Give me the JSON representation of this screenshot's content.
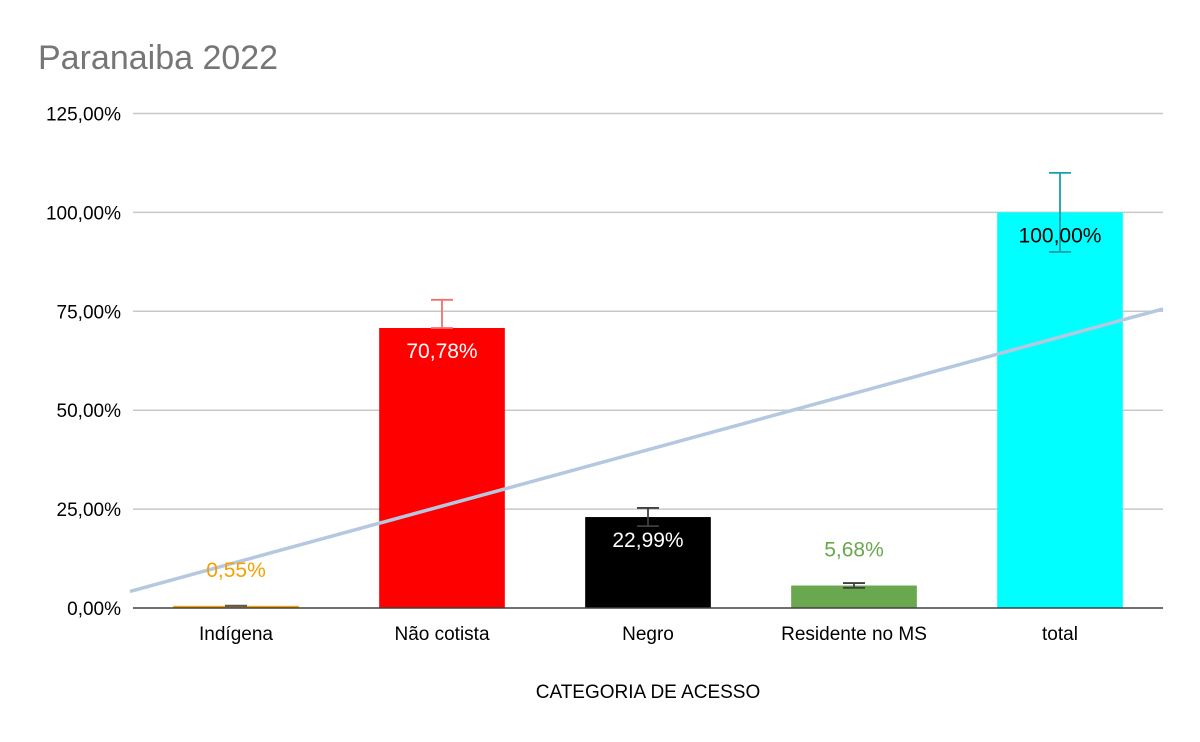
{
  "chart_data": {
    "type": "bar",
    "title": "Paranaiba 2022",
    "xlabel": "CATEGORIA DE ACESSO",
    "ylabel": "",
    "ylim": [
      0,
      125
    ],
    "yticks": [
      0,
      25,
      50,
      75,
      100,
      125
    ],
    "ytick_labels": [
      "0,00%",
      "25,00%",
      "50,00%",
      "75,00%",
      "100,00%",
      "125,00%"
    ],
    "grid": true,
    "categories": [
      "Indígena",
      "Não cotista",
      "Negro",
      "Residente no MS",
      "total"
    ],
    "values": [
      0.55,
      70.78,
      22.99,
      5.68,
      100.0
    ],
    "value_labels": [
      "0,55%",
      "70,78%",
      "22,99%",
      "5,68%",
      "100,00%"
    ],
    "bar_colors": [
      "#F5A000",
      "#FF0000",
      "#000000",
      "#6AA84F",
      "#00FFFF"
    ],
    "label_colors": [
      "#F5A000",
      "#FFFFFF",
      "#FFFFFF",
      "#6AA84F",
      "#000000"
    ],
    "label_positions": [
      "above",
      "inside",
      "inside",
      "above",
      "inside"
    ],
    "error_bars": [
      {
        "low": 0.5,
        "high": 0.6,
        "color": "#595959"
      },
      {
        "low": 70.78,
        "high": 77.9,
        "color": "#F07070"
      },
      {
        "low": 20.7,
        "high": 25.3,
        "color": "#404040"
      },
      {
        "low": 5.1,
        "high": 6.3,
        "color": "#404040"
      },
      {
        "low": 90.0,
        "high": 110.0,
        "color": "#1A9FA8"
      }
    ],
    "trendline": {
      "type": "linear",
      "color": "#B4C8DF",
      "start_value": 4.2,
      "end_value": 75.6
    }
  }
}
